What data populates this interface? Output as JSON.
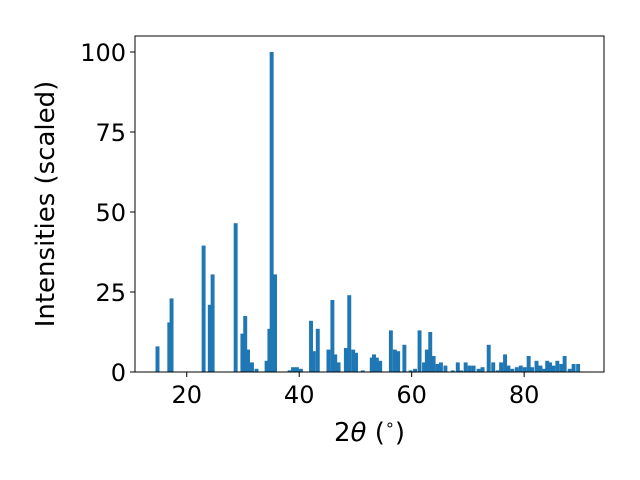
{
  "chart_data": {
    "type": "bar",
    "xlabel": "2θ (°)",
    "xlabel_parts": {
      "var": "θ",
      "pre": "2",
      "post": " (",
      "deg": "∘",
      "close": ")"
    },
    "ylabel": "Intensities (scaled)",
    "xlim": [
      10.8,
      94.2
    ],
    "ylim": [
      0,
      105
    ],
    "xticks": [
      20,
      40,
      60,
      80
    ],
    "yticks": [
      0,
      25,
      50,
      75,
      100
    ],
    "bar_width": 0.7,
    "color": "#1f77b4",
    "grid": false,
    "legend": "none",
    "x": [
      14.8,
      16.9,
      17.3,
      23.0,
      24.1,
      24.6,
      28.7,
      29.9,
      30.4,
      30.9,
      31.6,
      32.4,
      34.2,
      34.7,
      35.1,
      35.7,
      38.3,
      38.9,
      39.6,
      40.3,
      42.1,
      42.6,
      43.3,
      45.2,
      45.9,
      46.4,
      47.0,
      48.3,
      48.9,
      49.6,
      50.1,
      51.3,
      52.9,
      53.3,
      53.8,
      54.4,
      56.3,
      57.0,
      57.6,
      58.7,
      59.8,
      60.6,
      61.4,
      62.2,
      62.7,
      63.3,
      63.9,
      64.6,
      65.2,
      66.0,
      67.3,
      68.2,
      68.8,
      69.6,
      70.3,
      71.0,
      71.9,
      72.6,
      73.7,
      74.5,
      75.3,
      75.9,
      76.6,
      77.2,
      77.9,
      78.7,
      79.4,
      80.1,
      80.8,
      81.4,
      82.2,
      82.9,
      83.6,
      84.1,
      84.6,
      85.2,
      85.9,
      86.6,
      87.2,
      88.1,
      88.8,
      89.6
    ],
    "values": [
      8,
      15.5,
      23,
      39.5,
      21,
      30.5,
      46.5,
      12,
      17.5,
      7,
      3,
      1,
      3.5,
      13.5,
      100,
      30.5,
      0.5,
      1.5,
      1.5,
      1,
      16,
      6.5,
      13.5,
      7,
      22.5,
      5.5,
      3,
      7.5,
      24,
      7,
      6,
      0.5,
      4.5,
      5.5,
      4.5,
      3.5,
      13,
      7,
      6.5,
      8.5,
      0.5,
      1,
      13,
      3,
      7,
      12.5,
      5,
      2.5,
      3,
      2,
      0.5,
      3,
      0.5,
      3,
      2,
      2,
      1,
      1.5,
      8.5,
      3,
      0.5,
      3,
      5.5,
      2,
      1,
      1.5,
      2,
      1.5,
      5,
      1.5,
      3.5,
      2,
      1,
      3.5,
      3,
      2,
      3.5,
      2.5,
      5,
      1,
      2.5,
      2.5
    ]
  }
}
